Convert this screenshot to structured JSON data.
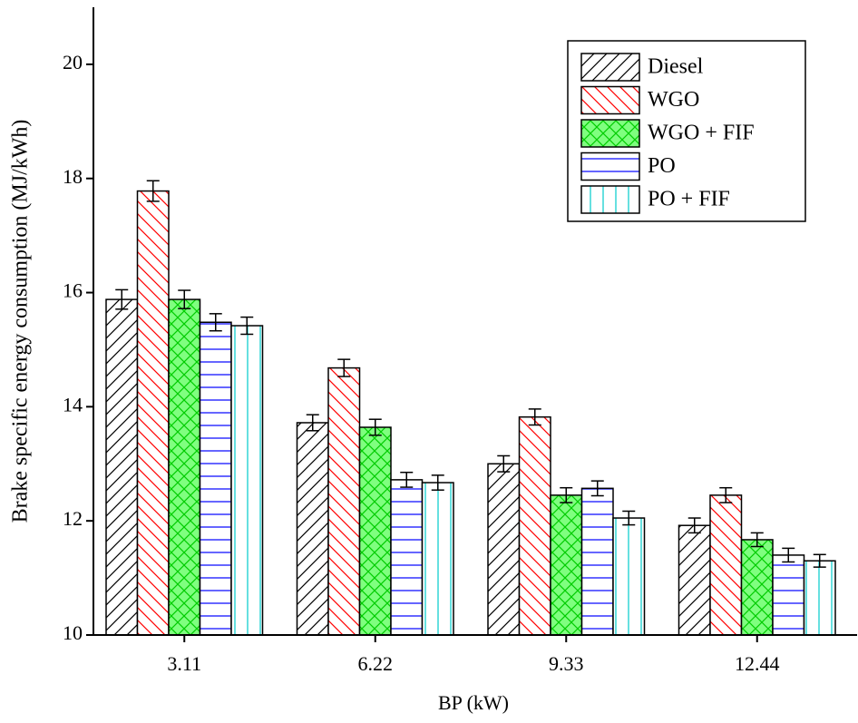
{
  "chart_data": {
    "type": "bar",
    "x_label": "BP (kW)",
    "y_label": "Brake specific energy consumption (MJ/kWh)",
    "categories": [
      "3.11",
      "6.22",
      "9.33",
      "12.44"
    ],
    "series": [
      {
        "name": "Diesel",
        "color": "#000000",
        "fill": "#ffffff",
        "hatch": "/",
        "values": [
          15.88,
          13.72,
          13.0,
          11.92
        ],
        "errors": [
          0.17,
          0.14,
          0.14,
          0.13
        ]
      },
      {
        "name": "WGO",
        "color": "#ff0000",
        "fill": "#ffffff",
        "hatch": "\\",
        "values": [
          17.78,
          14.68,
          13.82,
          12.45
        ],
        "errors": [
          0.18,
          0.15,
          0.14,
          0.13
        ]
      },
      {
        "name": "WGO + FIF",
        "color": "#00cc00",
        "fill": "#7fff7f",
        "hatch": "x",
        "values": [
          15.88,
          13.64,
          12.45,
          11.67
        ],
        "errors": [
          0.16,
          0.14,
          0.13,
          0.12
        ]
      },
      {
        "name": "PO",
        "color": "#0000ff",
        "fill": "#ffffff",
        "hatch": "-",
        "values": [
          15.48,
          12.72,
          12.57,
          11.4
        ],
        "errors": [
          0.15,
          0.13,
          0.13,
          0.12
        ]
      },
      {
        "name": "PO + FIF",
        "color": "#00cccc",
        "fill": "#ffffff",
        "hatch": "|",
        "values": [
          15.42,
          12.67,
          12.05,
          11.3
        ],
        "errors": [
          0.15,
          0.13,
          0.12,
          0.11
        ]
      }
    ],
    "ylim": [
      10,
      21
    ],
    "yticks": [
      10,
      12,
      14,
      16,
      18,
      20
    ],
    "legend": "upper right"
  }
}
